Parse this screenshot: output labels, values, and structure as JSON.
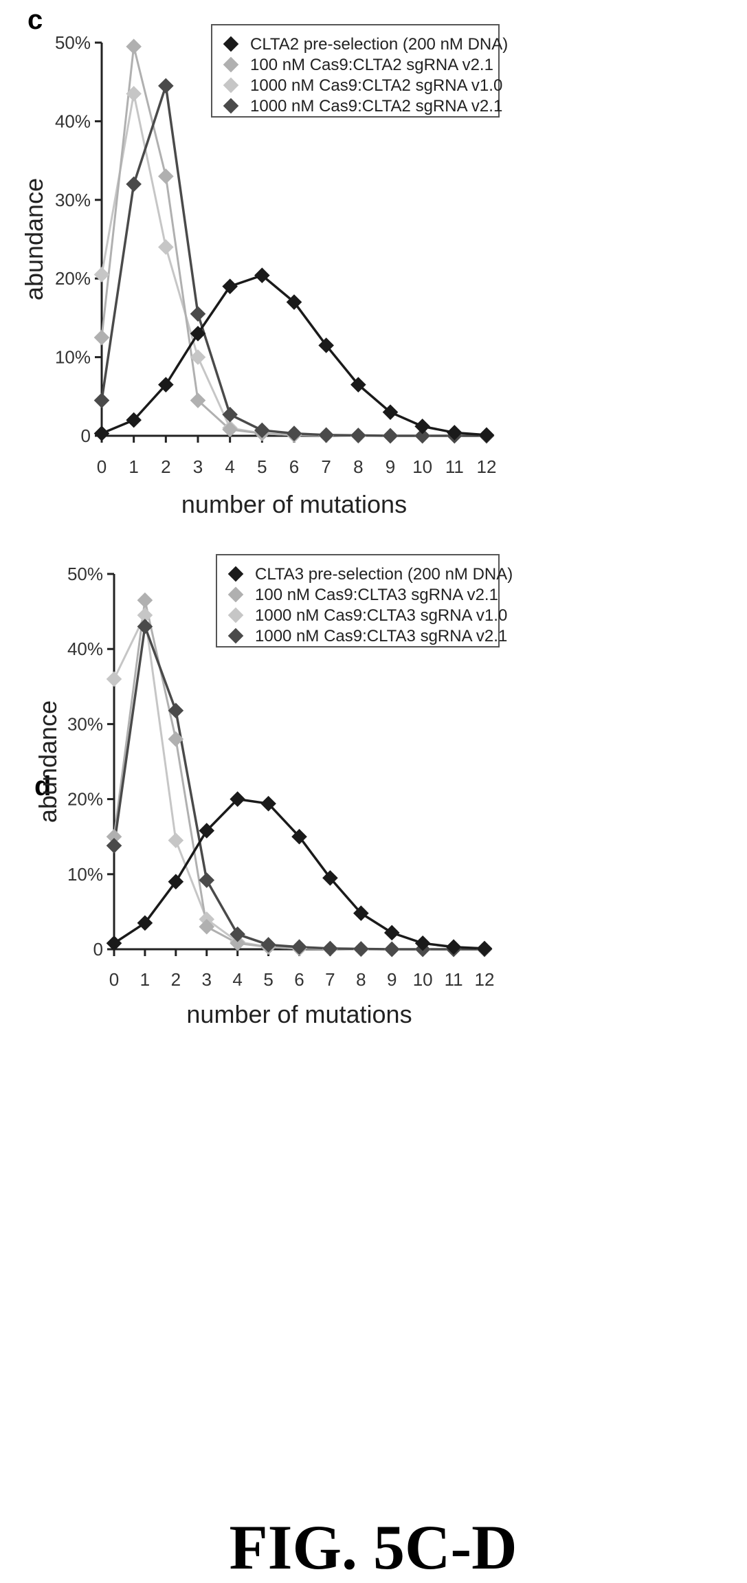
{
  "figure": {
    "caption": "FIG. 5C-D"
  },
  "chart_data": [
    {
      "panel": "c",
      "type": "line",
      "xlabel": "number of mutations",
      "ylabel": "abundance",
      "x": [
        0,
        1,
        2,
        3,
        4,
        5,
        6,
        7,
        8,
        9,
        10,
        11,
        12
      ],
      "xticks": [
        "0",
        "1",
        "2",
        "3",
        "4",
        "5",
        "6",
        "7",
        "8",
        "9",
        "10",
        "11",
        "12"
      ],
      "yticks": [
        "0",
        "10%",
        "20%",
        "30%",
        "40%",
        "50%"
      ],
      "ytick_values": [
        0,
        10,
        20,
        30,
        40,
        50
      ],
      "ylim": [
        0,
        50
      ],
      "xlim": [
        0,
        12
      ],
      "legend_position": "top-right",
      "series": [
        {
          "name": "CLTA2 pre-selection (200 nM DNA)",
          "color": "#1a1a1a",
          "values": [
            0.3,
            2,
            6.5,
            13,
            19,
            20.4,
            17,
            11.5,
            6.5,
            3,
            1.2,
            0.4,
            0.1
          ]
        },
        {
          "name": "100 nM Cas9:CLTA2 sgRNA v2.1",
          "color": "#b0b0b0",
          "values": [
            12.5,
            49.5,
            33,
            4.5,
            0.8,
            0.3,
            0.1,
            0.05,
            0,
            0,
            0,
            0,
            0
          ]
        },
        {
          "name": "1000 nM Cas9:CLTA2 sgRNA v1.0",
          "color": "#c6c6c6",
          "values": [
            20.5,
            43.5,
            24,
            10,
            1,
            0.3,
            0.1,
            0.05,
            0,
            0,
            0,
            0,
            0
          ]
        },
        {
          "name": "1000 nM Cas9:CLTA2 sgRNA v2.1",
          "color": "#4a4a4a",
          "values": [
            4.5,
            32,
            44.5,
            15.5,
            2.7,
            0.7,
            0.3,
            0.1,
            0.05,
            0,
            0,
            0,
            0
          ]
        }
      ]
    },
    {
      "panel": "d",
      "type": "line",
      "xlabel": "number of mutations",
      "ylabel": "abundance",
      "x": [
        0,
        1,
        2,
        3,
        4,
        5,
        6,
        7,
        8,
        9,
        10,
        11,
        12
      ],
      "xticks": [
        "0",
        "1",
        "2",
        "3",
        "4",
        "5",
        "6",
        "7",
        "8",
        "9",
        "10",
        "11",
        "12"
      ],
      "yticks": [
        "0",
        "10%",
        "20%",
        "30%",
        "40%",
        "50%"
      ],
      "ytick_values": [
        0,
        10,
        20,
        30,
        40,
        50
      ],
      "ylim": [
        0,
        50
      ],
      "xlim": [
        0,
        12
      ],
      "legend_position": "top-right",
      "series": [
        {
          "name": "CLTA3 pre-selection (200 nM DNA)",
          "color": "#1a1a1a",
          "values": [
            0.8,
            3.5,
            9,
            15.8,
            20,
            19.4,
            15,
            9.5,
            4.8,
            2.2,
            0.8,
            0.3,
            0.1
          ]
        },
        {
          "name": "100 nM Cas9:CLTA3 sgRNA v2.1",
          "color": "#b0b0b0",
          "values": [
            15,
            46.5,
            28,
            3,
            0.8,
            0.3,
            0.1,
            0.05,
            0,
            0,
            0,
            0,
            0
          ]
        },
        {
          "name": "1000 nM Cas9:CLTA3 sgRNA v1.0",
          "color": "#c6c6c6",
          "values": [
            36,
            44.5,
            14.5,
            4,
            1,
            0.3,
            0.1,
            0.05,
            0,
            0,
            0,
            0,
            0
          ]
        },
        {
          "name": "1000 nM Cas9:CLTA3 sgRNA v2.1",
          "color": "#4a4a4a",
          "values": [
            13.8,
            43,
            31.8,
            9.2,
            2,
            0.6,
            0.3,
            0.1,
            0.05,
            0,
            0,
            0,
            0
          ]
        }
      ]
    }
  ]
}
